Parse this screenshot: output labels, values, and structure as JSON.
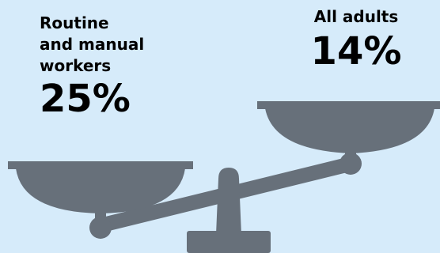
{
  "left_group": {
    "label_lines": [
      "Routine",
      "and manual",
      "workers"
    ],
    "value": "25%"
  },
  "right_group": {
    "label_lines": [
      "All adults"
    ],
    "value": "14%"
  },
  "colors": {
    "background": "#d6ebfa",
    "scale": "#67707a",
    "text": "#000000"
  },
  "icons": {
    "scale": "balance-scale-icon"
  }
}
